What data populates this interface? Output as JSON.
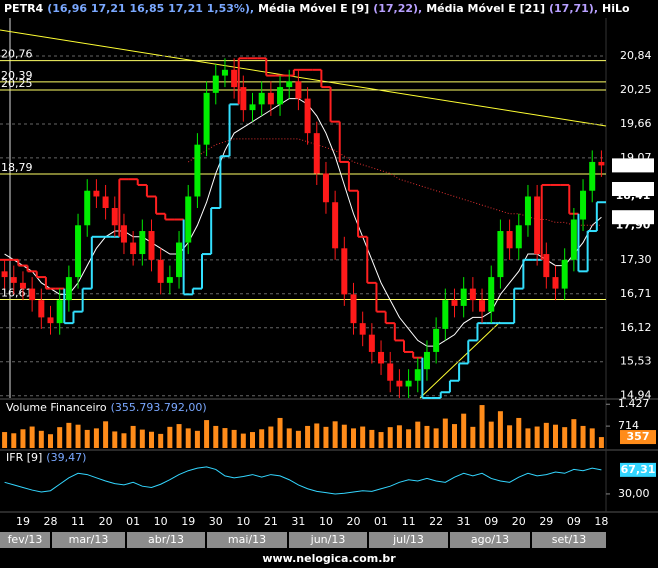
{
  "chart_data": {
    "type": "candlestick",
    "title": "PETR4",
    "quote": "(16,96  17,21  16,85  17,21  1,53%),",
    "up_color": "#00ee00",
    "down_color": "#ff1a1a",
    "grid": true,
    "ylim": [
      14.9,
      21.5
    ],
    "yticks": [
      {
        "value": 20.84,
        "label": "20,84"
      },
      {
        "value": 20.25,
        "label": "20,25"
      },
      {
        "value": 19.66,
        "label": "19,66"
      },
      {
        "value": 19.07,
        "label": "19,07"
      },
      {
        "value": 17.3,
        "label": "17,30"
      },
      {
        "value": 16.71,
        "label": "16,71"
      },
      {
        "value": 16.12,
        "label": "16,12"
      },
      {
        "value": 15.53,
        "label": "15,53"
      },
      {
        "value": 14.94,
        "label": "14,94"
      }
    ],
    "categories": [
      null,
      null,
      "19",
      null,
      null,
      "28",
      null,
      null,
      "11",
      null,
      null,
      "20",
      null,
      null,
      "01",
      null,
      null,
      "10",
      null,
      null,
      "19",
      null,
      null,
      "30",
      null,
      null,
      "10",
      null,
      null,
      "21",
      null,
      null,
      "31",
      null,
      null,
      "10",
      null,
      null,
      "20",
      null,
      null,
      "01",
      null,
      null,
      "11",
      null,
      null,
      "22",
      null,
      null,
      "31",
      null,
      null,
      "09",
      null,
      null,
      "20",
      null,
      null,
      "29",
      null,
      null,
      "09",
      null,
      null,
      "18"
    ],
    "open": [
      17.1,
      17.0,
      16.9,
      16.8,
      16.6,
      16.3,
      16.2,
      16.6,
      17.0,
      17.9,
      18.5,
      18.4,
      18.2,
      17.9,
      17.6,
      17.4,
      17.8,
      17.3,
      16.9,
      17.0,
      17.6,
      18.4,
      19.3,
      20.2,
      20.5,
      20.6,
      20.3,
      19.9,
      20.0,
      20.2,
      20.0,
      20.3,
      20.4,
      20.1,
      19.5,
      18.8,
      18.3,
      17.5,
      16.7,
      16.2,
      16.0,
      15.7,
      15.5,
      15.2,
      15.1,
      15.2,
      15.4,
      15.7,
      16.1,
      16.6,
      16.5,
      16.8,
      16.6,
      16.4,
      17.0,
      17.8,
      17.5,
      17.9,
      18.4,
      17.4,
      17.0,
      16.8,
      17.3,
      18.0,
      18.5,
      19.0
    ],
    "high": [
      17.3,
      17.2,
      17.1,
      17.0,
      16.8,
      16.5,
      16.8,
      17.2,
      18.1,
      18.7,
      18.7,
      18.6,
      18.4,
      18.1,
      17.8,
      18.0,
      18.0,
      17.5,
      17.2,
      17.8,
      18.6,
      19.5,
      20.4,
      20.7,
      20.8,
      20.8,
      20.5,
      20.2,
      20.4,
      20.4,
      20.5,
      20.6,
      20.6,
      20.3,
      19.7,
      19.0,
      18.5,
      17.7,
      16.9,
      16.4,
      16.2,
      15.9,
      15.7,
      15.4,
      15.4,
      15.6,
      15.9,
      16.3,
      16.8,
      16.8,
      17.0,
      17.0,
      16.8,
      17.2,
      18.0,
      18.0,
      18.1,
      18.6,
      18.6,
      17.6,
      17.2,
      17.5,
      18.2,
      18.7,
      19.2,
      19.2
    ],
    "low": [
      16.8,
      16.7,
      16.6,
      16.4,
      16.1,
      16.0,
      16.0,
      16.4,
      16.8,
      17.7,
      18.2,
      18.0,
      17.7,
      17.4,
      17.2,
      17.2,
      17.1,
      16.7,
      16.7,
      16.8,
      17.4,
      18.2,
      19.1,
      20.0,
      20.3,
      20.1,
      19.7,
      19.7,
      19.8,
      19.8,
      19.8,
      20.1,
      19.9,
      19.3,
      18.6,
      18.1,
      17.3,
      16.5,
      16.0,
      15.8,
      15.5,
      15.3,
      15.0,
      14.9,
      14.9,
      15.0,
      15.2,
      15.5,
      15.9,
      16.3,
      16.3,
      16.4,
      16.2,
      16.2,
      16.8,
      17.3,
      17.3,
      17.7,
      17.2,
      16.8,
      16.6,
      16.6,
      17.1,
      17.8,
      18.3,
      18.74
    ],
    "close": [
      17.0,
      16.9,
      16.8,
      16.6,
      16.3,
      16.2,
      16.6,
      17.0,
      17.9,
      18.5,
      18.4,
      18.2,
      17.9,
      17.6,
      17.4,
      17.8,
      17.3,
      16.9,
      17.0,
      17.6,
      18.4,
      19.3,
      20.2,
      20.5,
      20.6,
      20.3,
      19.9,
      20.0,
      20.2,
      20.0,
      20.3,
      20.4,
      20.1,
      19.5,
      18.8,
      18.3,
      17.5,
      16.7,
      16.2,
      16.0,
      15.7,
      15.5,
      15.2,
      15.1,
      15.2,
      15.4,
      15.7,
      16.1,
      16.6,
      16.5,
      16.8,
      16.6,
      16.4,
      17.0,
      17.8,
      17.5,
      17.9,
      18.4,
      17.4,
      17.0,
      16.8,
      17.3,
      18.0,
      18.5,
      19.0,
      18.94
    ],
    "overlays": [
      {
        "name": "Média Móvel E [9]",
        "reading": "(17,22),",
        "kind": "line",
        "color": "#ffffff",
        "values": [
          17.4,
          17.3,
          17.2,
          17.1,
          16.9,
          16.8,
          16.7,
          16.7,
          16.9,
          17.2,
          17.5,
          17.7,
          17.8,
          17.8,
          17.7,
          17.7,
          17.6,
          17.5,
          17.4,
          17.4,
          17.6,
          17.9,
          18.3,
          18.8,
          19.2,
          19.5,
          19.6,
          19.7,
          19.8,
          19.9,
          20.0,
          20.1,
          20.1,
          20.0,
          19.8,
          19.5,
          19.1,
          18.6,
          18.1,
          17.7,
          17.3,
          16.9,
          16.6,
          16.3,
          16.1,
          15.9,
          15.8,
          15.8,
          15.9,
          16.0,
          16.2,
          16.3,
          16.3,
          16.4,
          16.7,
          16.9,
          17.1,
          17.4,
          17.4,
          17.3,
          17.2,
          17.2,
          17.4,
          17.6,
          17.9,
          18.04
        ]
      },
      {
        "name": "Média Móvel E [21]",
        "reading": "(17,71),",
        "kind": "dotted",
        "color": "#e03030",
        "values": [
          null,
          null,
          null,
          null,
          null,
          null,
          null,
          null,
          null,
          null,
          null,
          null,
          null,
          null,
          null,
          null,
          null,
          null,
          null,
          null,
          19.0,
          19.1,
          19.2,
          19.3,
          19.35,
          19.4,
          19.4,
          19.4,
          19.4,
          19.4,
          19.4,
          19.4,
          19.4,
          19.35,
          19.3,
          19.25,
          19.2,
          19.1,
          19.0,
          18.95,
          18.9,
          18.85,
          18.8,
          18.7,
          18.65,
          18.6,
          18.55,
          18.5,
          18.45,
          18.4,
          18.35,
          18.3,
          18.25,
          18.2,
          18.15,
          18.1,
          18.1,
          18.05,
          18.0,
          18.0,
          17.95,
          17.95,
          17.9,
          17.9,
          17.9,
          17.9
        ]
      },
      {
        "name": "HiLo",
        "kind": "hilo",
        "color": "#33e0ff",
        "down_color": "#ff2020",
        "values": [
          17.3,
          17.3,
          17.2,
          17.1,
          17.0,
          16.8,
          16.8,
          16.2,
          16.4,
          16.8,
          17.7,
          17.7,
          17.7,
          18.7,
          18.7,
          18.6,
          18.4,
          18.1,
          18.0,
          18.0,
          16.7,
          16.8,
          17.4,
          18.2,
          19.1,
          20.0,
          20.8,
          20.8,
          20.8,
          20.5,
          20.5,
          20.5,
          20.6,
          20.6,
          20.6,
          20.3,
          19.7,
          19.0,
          18.5,
          17.7,
          16.9,
          16.4,
          16.2,
          15.9,
          15.7,
          15.6,
          14.9,
          14.9,
          15.0,
          15.2,
          15.5,
          15.9,
          16.2,
          16.2,
          16.2,
          16.2,
          16.8,
          17.3,
          17.3,
          18.6,
          18.6,
          18.6,
          18.1,
          17.1,
          17.8,
          18.3
        ]
      }
    ],
    "levels": [
      {
        "value": 20.76,
        "label": "20,76"
      },
      {
        "value": 20.39,
        "label": "20,39"
      },
      {
        "value": 20.25,
        "label": "20,25"
      },
      {
        "value": 18.79,
        "label": "18,79"
      },
      {
        "value": 16.61,
        "label": "16,61"
      }
    ],
    "level_color": "#ffff66",
    "badges": [
      {
        "value": 17.9,
        "label": "17,90",
        "bg": "#000000",
        "fg": "#ff3333"
      },
      {
        "value": 18.41,
        "label": "18,41",
        "bg": "#000000",
        "fg": "#ff3333"
      },
      {
        "value": 18.04,
        "label": "18,04",
        "bg": "#ffffff",
        "fg": "#000000"
      },
      {
        "value": 18.53,
        "label": "18,53",
        "bg": "#ffffff",
        "fg": "#007f8c"
      },
      {
        "value": 18.94,
        "label": "18,94",
        "bg": "#ffffff",
        "fg": "#007f8c"
      }
    ],
    "volume": {
      "name": "Volume Financeiro",
      "reading": "(355.793.792,00)",
      "color": "#ff8c1a",
      "ylim": [
        0,
        1500
      ],
      "yticks": [
        714,
        {
          "value": 1427,
          "label": "1.427"
        }
      ],
      "badge": {
        "value": 357,
        "bg": "#ff8c1a",
        "fg": "#8b0000"
      },
      "values": [
        520,
        480,
        610,
        700,
        560,
        450,
        680,
        820,
        760,
        590,
        640,
        870,
        540,
        480,
        720,
        600,
        530,
        460,
        690,
        780,
        640,
        560,
        910,
        720,
        650,
        590,
        470,
        520,
        610,
        700,
        980,
        640,
        560,
        720,
        800,
        690,
        870,
        760,
        640,
        700,
        590,
        520,
        680,
        740,
        610,
        860,
        720,
        640,
        960,
        780,
        1120,
        690,
        1400,
        860,
        1200,
        740,
        980,
        640,
        700,
        820,
        760,
        680,
        940,
        720,
        640,
        356
      ]
    },
    "ifr": {
      "name": "IFR [9]",
      "reading": "(39,47)",
      "color": "#33d6ff",
      "ylim": [
        2,
        95
      ],
      "yticks": [
        {
          "value": 30,
          "label": "30,00"
        }
      ],
      "badge": {
        "value": 67.31,
        "label": "67,31",
        "bg": "#33d6ff",
        "fg": "#000000"
      },
      "values": [
        48,
        44,
        40,
        36,
        33,
        35,
        45,
        55,
        62,
        60,
        55,
        50,
        46,
        44,
        48,
        42,
        40,
        45,
        52,
        60,
        66,
        70,
        72,
        68,
        58,
        55,
        57,
        60,
        56,
        60,
        58,
        52,
        44,
        38,
        34,
        32,
        30,
        31,
        33,
        35,
        34,
        38,
        42,
        48,
        52,
        50,
        54,
        50,
        48,
        56,
        62,
        58,
        62,
        54,
        50,
        48,
        56,
        62,
        58,
        60,
        64,
        62,
        68,
        66,
        70,
        67.31
      ]
    },
    "months": [
      "fev/13",
      "mar/13",
      "abr/13",
      "mai/13",
      "jun/13",
      "jul/13",
      "ago/13",
      "set/13"
    ],
    "footer": "www.nelogica.com.br"
  }
}
